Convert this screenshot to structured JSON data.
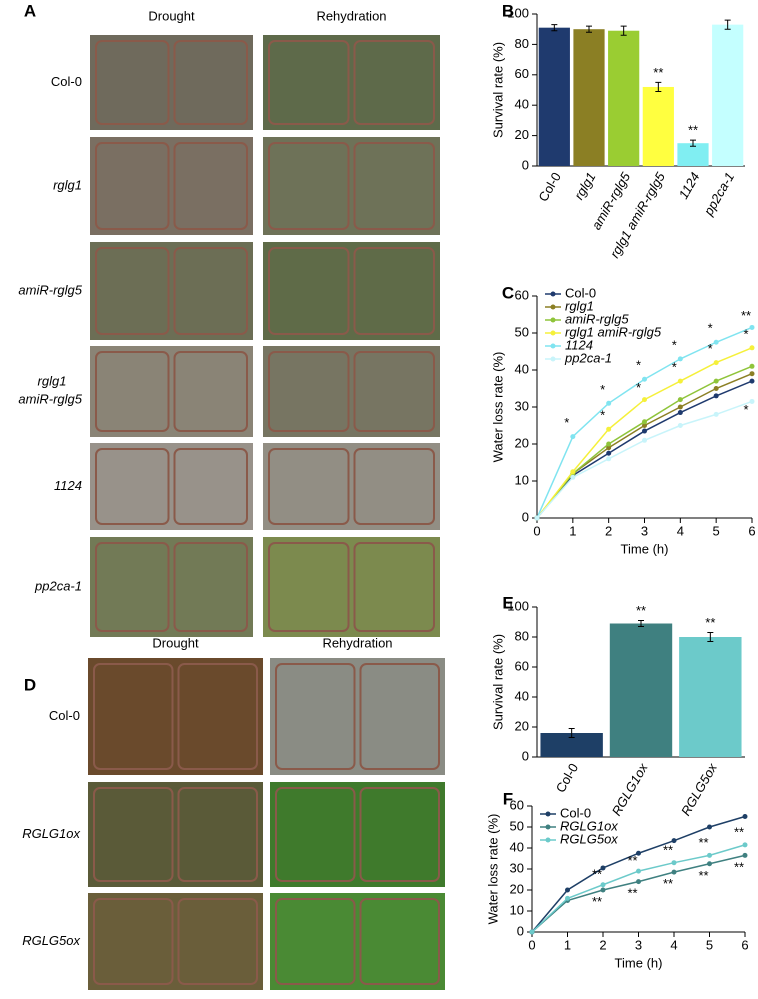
{
  "photo_panels": [
    {
      "panel": "A",
      "columns": [
        "Drought",
        "Rehydration"
      ],
      "rows": [
        "Col-0",
        "rglg1",
        "amiR-rglg5",
        "rglg1 amiR-rglg5",
        "1124",
        "pp2ca-1"
      ]
    },
    {
      "panel": "D",
      "columns": [
        "Drought",
        "Rehydration"
      ],
      "rows": [
        "Col-0",
        "RGLG1ox",
        "RGLG5ox"
      ]
    }
  ],
  "chart_data": [
    {
      "type": "bar",
      "panel": "B",
      "y_label": "Survival rate (%)",
      "categories": [
        "Col-0",
        "rglg1",
        "amiR-rglg5",
        "rglg1 amiR-rglg5",
        "1124",
        "pp2ca-1"
      ],
      "values": [
        91,
        90,
        89,
        52,
        15,
        93
      ],
      "errors": [
        2,
        2,
        3,
        3,
        2,
        3
      ],
      "colors": [
        "#1f3a6e",
        "#8b7f24",
        "#9acd32",
        "#ffff40",
        "#80eef2",
        "#c4ffff"
      ],
      "annotations": [
        null,
        null,
        null,
        "**",
        "**",
        null
      ],
      "ylim": [
        0,
        100
      ],
      "yticks": [
        0,
        20,
        40,
        60,
        80,
        100
      ]
    },
    {
      "type": "line",
      "panel": "C",
      "x_label": "Time (h)",
      "y_label": "Water loss rate (%)",
      "x": [
        0,
        1,
        2,
        3,
        4,
        5,
        6
      ],
      "series": [
        {
          "name": "Col-0",
          "color": "#1f3a6e",
          "values": [
            0,
            11.5,
            17.5,
            23.5,
            28.5,
            33,
            37
          ]
        },
        {
          "name": "rglg1",
          "color": "#8b7f24",
          "values": [
            0,
            12,
            19,
            25,
            30,
            35,
            39
          ]
        },
        {
          "name": "amiR-rglg5",
          "color": "#8fc43a",
          "values": [
            0,
            12,
            20,
            26,
            32,
            37,
            41
          ]
        },
        {
          "name": "rglg1 amiR-rglg5",
          "color": "#f5f03a",
          "values": [
            0,
            12.5,
            24,
            32,
            37,
            42,
            46
          ]
        },
        {
          "name": "1124",
          "color": "#80e4f0",
          "values": [
            0,
            22,
            31,
            37.5,
            43,
            47.5,
            51.5
          ]
        },
        {
          "name": "pp2ca-1",
          "color": "#c8f4fa",
          "values": [
            0,
            11,
            16,
            21,
            25,
            28,
            31.5
          ]
        }
      ],
      "annotations": [
        {
          "x": 1,
          "y": 25.5,
          "text": "*"
        },
        {
          "x": 2,
          "y": 34.5,
          "text": "*"
        },
        {
          "x": 2,
          "y": 27.5,
          "text": "*"
        },
        {
          "x": 3,
          "y": 41,
          "text": "*"
        },
        {
          "x": 3,
          "y": 35,
          "text": "*"
        },
        {
          "x": 4,
          "y": 46.5,
          "text": "*"
        },
        {
          "x": 4,
          "y": 40.5,
          "text": "*"
        },
        {
          "x": 5,
          "y": 51,
          "text": "*"
        },
        {
          "x": 5,
          "y": 45.5,
          "text": "*"
        },
        {
          "x": 6,
          "y": 54.5,
          "text": "**"
        },
        {
          "x": 6,
          "y": 49.5,
          "text": "*"
        },
        {
          "x": 6,
          "y": 29,
          "text": "*"
        }
      ],
      "xlim": [
        0,
        6
      ],
      "xticks": [
        0,
        1,
        2,
        3,
        4,
        5,
        6
      ],
      "ylim": [
        0,
        60
      ],
      "yticks": [
        0,
        10,
        20,
        30,
        40,
        50,
        60
      ]
    },
    {
      "type": "bar",
      "panel": "E",
      "y_label": "Survival rate (%)",
      "categories": [
        "Col-0",
        "RGLG1ox",
        "RGLG5ox"
      ],
      "values": [
        16,
        89,
        80
      ],
      "errors": [
        3,
        2,
        3
      ],
      "colors": [
        "#1e3f66",
        "#3f8080",
        "#6ccaca"
      ],
      "annotations": [
        null,
        "**",
        "**"
      ],
      "ylim": [
        0,
        100
      ],
      "yticks": [
        0,
        20,
        40,
        60,
        80,
        100
      ]
    },
    {
      "type": "line",
      "panel": "F",
      "x_label": "Time (h)",
      "y_label": "Water loss rate (%)",
      "x": [
        0,
        1,
        2,
        3,
        4,
        5,
        6
      ],
      "series": [
        {
          "name": "Col-0",
          "color": "#1e3f66",
          "values": [
            0,
            20,
            30.5,
            37.5,
            43.5,
            50,
            55
          ]
        },
        {
          "name": "RGLG1ox",
          "color": "#3f8080",
          "values": [
            0,
            15,
            20,
            24,
            28.5,
            32.5,
            36.5
          ]
        },
        {
          "name": "RGLG5ox",
          "color": "#6ccaca",
          "values": [
            0,
            16,
            22.5,
            29,
            33,
            36.5,
            41.5
          ]
        }
      ],
      "annotations": [
        {
          "x": 2,
          "y": 27,
          "text": "**",
          "color": "#6ccaca"
        },
        {
          "x": 3,
          "y": 33.5,
          "text": "**",
          "color": "#6ccaca"
        },
        {
          "x": 4,
          "y": 38.5,
          "text": "**",
          "color": "#6ccaca"
        },
        {
          "x": 5,
          "y": 42,
          "text": "**",
          "color": "#6ccaca"
        },
        {
          "x": 6,
          "y": 47,
          "text": "**",
          "color": "#6ccaca"
        },
        {
          "x": 2,
          "y": 14,
          "text": "**",
          "color": "#3f8080"
        },
        {
          "x": 3,
          "y": 18,
          "text": "**",
          "color": "#3f8080"
        },
        {
          "x": 4,
          "y": 22.5,
          "text": "**",
          "color": "#3f8080"
        },
        {
          "x": 5,
          "y": 26.5,
          "text": "**",
          "color": "#3f8080"
        },
        {
          "x": 6,
          "y": 30.5,
          "text": "**",
          "color": "#3f8080"
        }
      ],
      "xlim": [
        0,
        6
      ],
      "xticks": [
        0,
        1,
        2,
        3,
        4,
        5,
        6
      ],
      "ylim": [
        0,
        60
      ],
      "yticks": [
        0,
        10,
        20,
        30,
        40,
        50,
        60
      ]
    }
  ]
}
